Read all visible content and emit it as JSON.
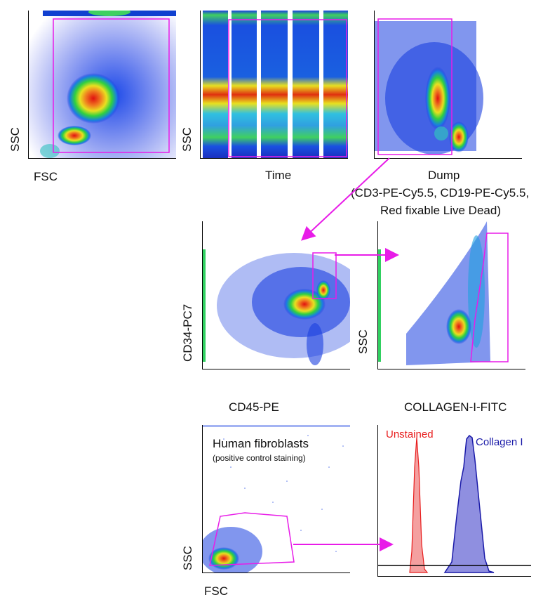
{
  "chart_data": [
    {
      "id": "p1",
      "type": "scatter",
      "xlabel": "FSC",
      "ylabel": "SSC",
      "title": "",
      "gate": "polygon"
    },
    {
      "id": "p2",
      "type": "scatter",
      "xlabel": "Time",
      "ylabel": "SSC",
      "title": "",
      "gate": "rectangle"
    },
    {
      "id": "p3",
      "type": "scatter",
      "xlabel": "Dump",
      "xlabel_sub_1": "(CD3-PE-Cy5.5, CD19-PE-Cy5.5,",
      "xlabel_sub_2": "Red fixable Live Dead)",
      "ylabel": "",
      "title": "",
      "gate": "rectangle"
    },
    {
      "id": "p4",
      "type": "scatter",
      "xlabel": "CD45-PE",
      "ylabel": "CD34-PC7",
      "title": "",
      "gate": "rectangle"
    },
    {
      "id": "p5",
      "type": "scatter",
      "xlabel": "COLLAGEN-I-FITC",
      "ylabel": "SSC",
      "title": "",
      "gate": "polygon"
    },
    {
      "id": "p6",
      "type": "scatter",
      "xlabel": "FSC",
      "ylabel": "SSC",
      "title": "Human fibroblasts",
      "subtitle": "(positive control staining)",
      "gate": "polygon"
    },
    {
      "id": "p7",
      "type": "area",
      "xlabel": "",
      "ylabel": "",
      "title": "",
      "series": [
        {
          "name": "Unstained",
          "color": "#e81c1c",
          "fill": "#f4a0a0"
        },
        {
          "name": "Collagen I",
          "color": "#1a1aa8",
          "fill": "#8f8fe0"
        }
      ]
    }
  ],
  "colors": {
    "gate": "#e81ce8",
    "arrow": "#e81ce8"
  }
}
